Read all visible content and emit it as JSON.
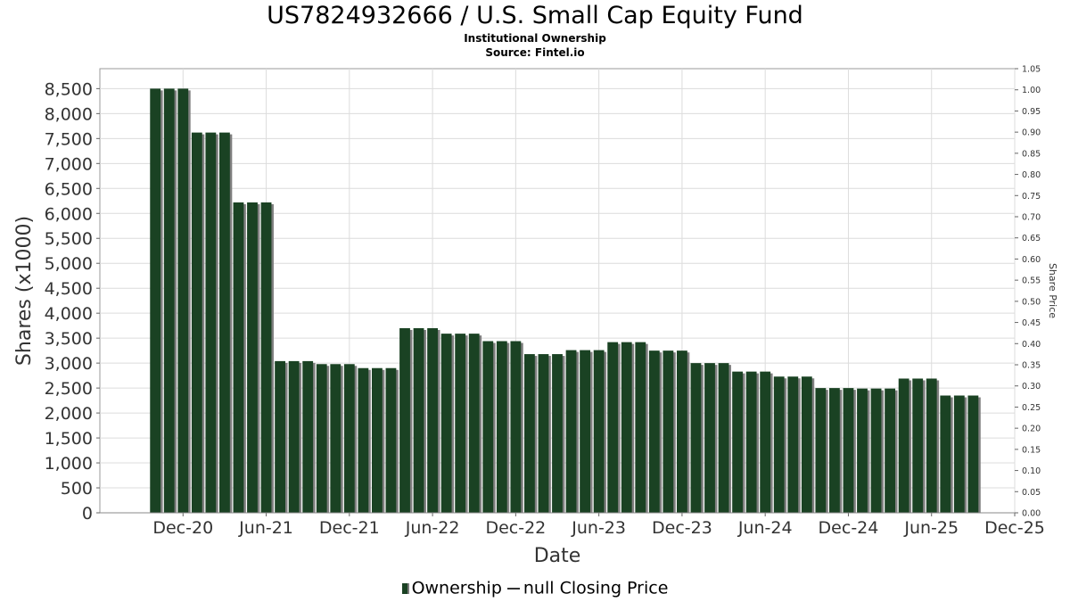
{
  "title": "US7824932666 / U.S. Small Cap Equity Fund",
  "subtitle1": "Institutional Ownership",
  "subtitle2": "Source: Fintel.io",
  "legend": {
    "ownership": "Ownership",
    "price": "null Closing Price"
  },
  "colors": {
    "bar": "#1a4223",
    "bar_shadow": "#7f7f7f",
    "grid": "#dcdcdc"
  },
  "chart_data": {
    "type": "bar",
    "xlabel": "Date",
    "ylabel": "Shares (x1000)",
    "y2label": "Share Price",
    "ylim": [
      0,
      8900
    ],
    "y2lim": [
      0,
      1.05
    ],
    "grid": true,
    "legend_position": "bottom",
    "yticks": [
      0,
      500,
      1000,
      1500,
      2000,
      2500,
      3000,
      3500,
      4000,
      4500,
      5000,
      5500,
      6000,
      6500,
      7000,
      7500,
      8000,
      8500
    ],
    "ytick_labels": [
      "0",
      "500",
      "1,000",
      "1,500",
      "2,000",
      "2,500",
      "3,000",
      "3,500",
      "4,000",
      "4,500",
      "5,000",
      "5,500",
      "6,000",
      "6,500",
      "7,000",
      "7,500",
      "8,000",
      "8,500"
    ],
    "y2ticks": [
      "0.00",
      "0.05",
      "0.10",
      "0.15",
      "0.20",
      "0.25",
      "0.30",
      "0.35",
      "0.40",
      "0.45",
      "0.50",
      "0.55",
      "0.60",
      "0.65",
      "0.70",
      "0.75",
      "0.80",
      "0.85",
      "0.90",
      "0.95",
      "1.00",
      "1.05"
    ],
    "xticks": [
      "Dec-20",
      "Jun-21",
      "Dec-21",
      "Jun-22",
      "Dec-22",
      "Jun-23",
      "Dec-23",
      "Jun-24",
      "Dec-24",
      "Jun-25",
      "Dec-25"
    ],
    "xlim": [
      "2020-06",
      "2025-12"
    ],
    "series": [
      {
        "name": "Ownership",
        "values": [
          8500,
          8500,
          8500,
          7620,
          7620,
          7620,
          6220,
          6220,
          6220,
          3040,
          3040,
          3040,
          2980,
          2980,
          2980,
          2900,
          2900,
          2900,
          3700,
          3700,
          3700,
          3590,
          3590,
          3590,
          3440,
          3440,
          3440,
          3180,
          3180,
          3180,
          3260,
          3260,
          3260,
          3420,
          3420,
          3420,
          3250,
          3250,
          3250,
          3000,
          3000,
          3000,
          2830,
          2830,
          2830,
          2730,
          2730,
          2730,
          2500,
          2500,
          2500,
          2490,
          2490,
          2490,
          2690,
          2690,
          2690,
          2350,
          2350,
          2350
        ]
      },
      {
        "name": "null Closing Price",
        "values": []
      }
    ],
    "x_start_month": "2020-10"
  }
}
